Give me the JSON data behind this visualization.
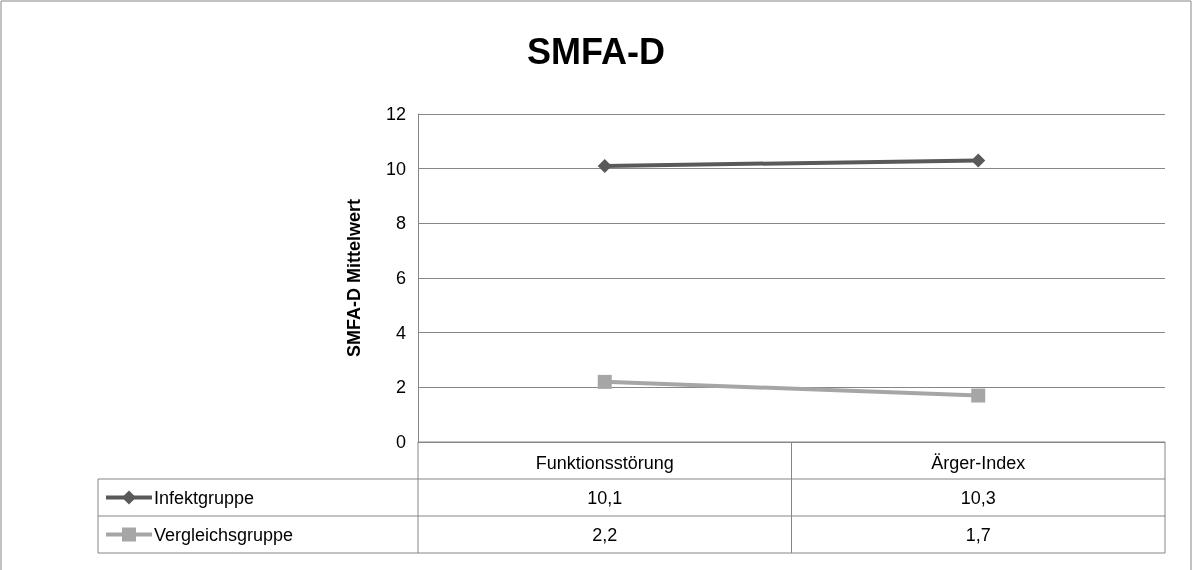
{
  "chart_data": {
    "type": "line",
    "title": "SMFA-D",
    "ylabel": "SMFA-D Mittelwert",
    "categories": [
      "Funktionsstörung",
      "Ärger-Index"
    ],
    "series": [
      {
        "name": "Infektgruppe",
        "color": "#595959",
        "values": [
          10.1,
          10.3
        ],
        "value_labels": [
          "10,1",
          "10,3"
        ],
        "marker": "diamond"
      },
      {
        "name": "Vergleichsgruppe",
        "color": "#a6a6a6",
        "values": [
          2.2,
          1.7
        ],
        "value_labels": [
          "2,2",
          "1,7"
        ],
        "marker": "square"
      }
    ],
    "ylim": [
      0,
      12
    ],
    "yticks": [
      0,
      2,
      4,
      6,
      8,
      10,
      12
    ],
    "grid": "y",
    "legend": "bottom"
  }
}
